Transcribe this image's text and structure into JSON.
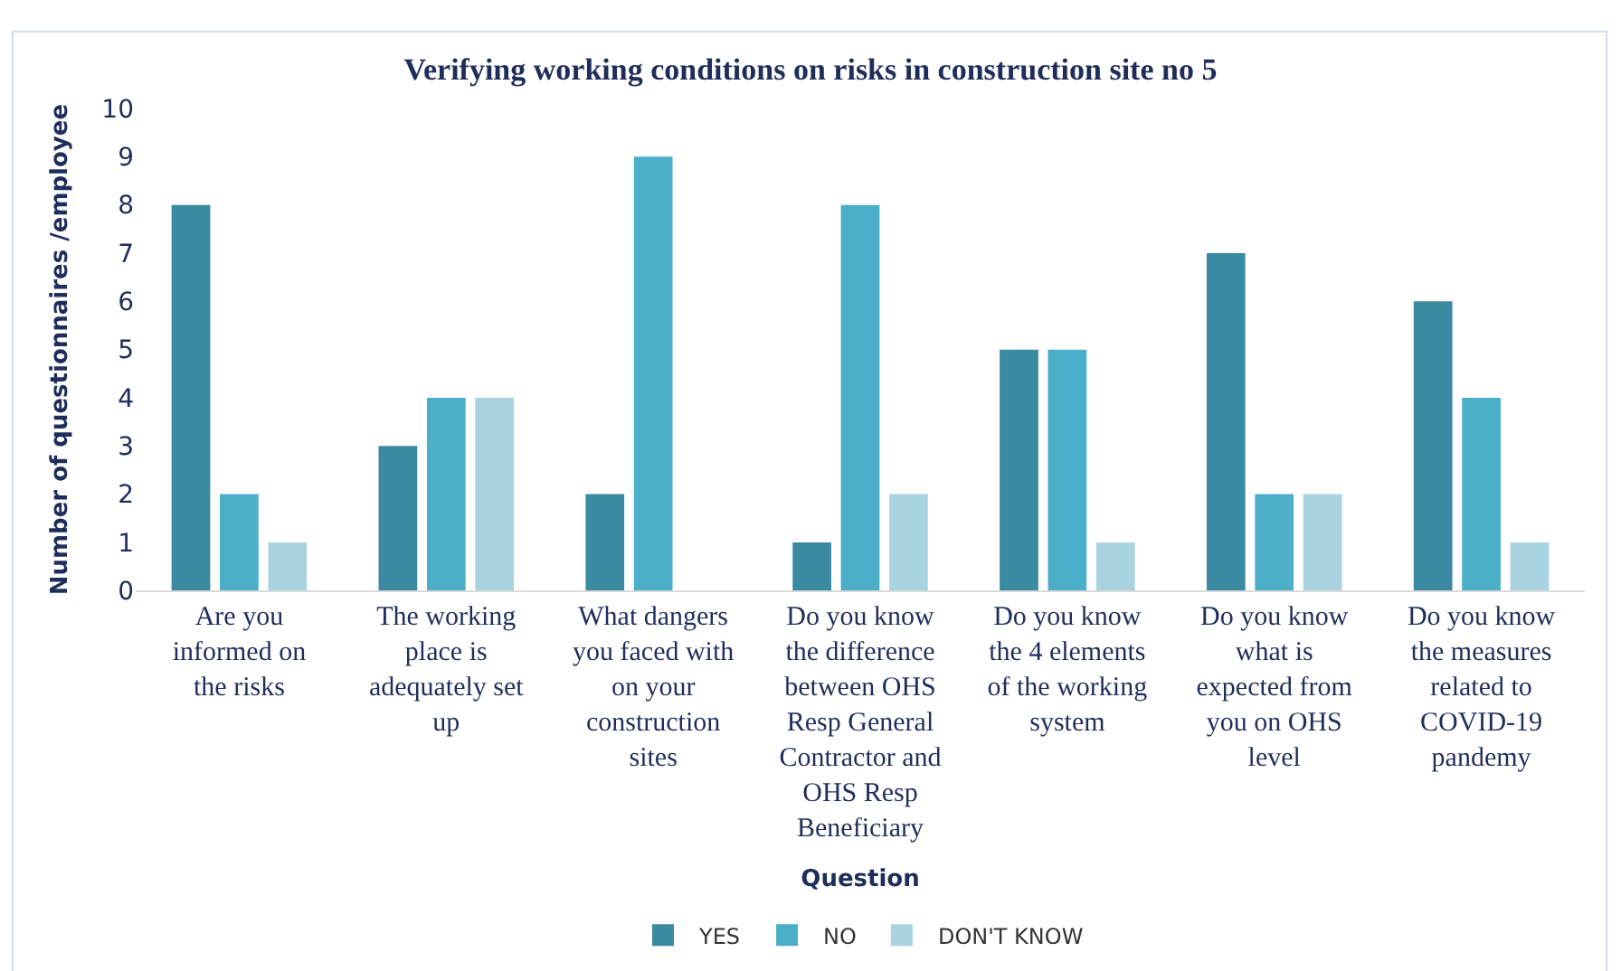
{
  "chart_data": {
    "type": "bar",
    "title": "Verifying working conditions on risks in construction site no 5",
    "xlabel": "Question",
    "ylabel": "Number of questionnaires /employee",
    "categories": [
      "Are you informed on the risks",
      "The working place is adequately set up",
      "What dangers you faced with on your construction sites",
      "Do you know the difference between OHS Resp General Contractor and OHS Resp Beneficiary",
      "Do you know the 4 elements of the working system",
      "Do you know what is expected from you on OHS level",
      "Do you know the measures related to COVID-19 pandemy"
    ],
    "series": [
      {
        "name": "YES",
        "color": "#3a8ba1",
        "values": [
          8,
          3,
          2,
          1,
          5,
          7,
          6
        ]
      },
      {
        "name": "NO",
        "color": "#4bafca",
        "values": [
          2,
          4,
          9,
          8,
          5,
          2,
          4
        ]
      },
      {
        "name": "DON'T KNOW",
        "color": "#a9d3e1",
        "values": [
          1,
          4,
          0,
          2,
          1,
          2,
          1
        ]
      }
    ],
    "ylim": [
      0,
      10
    ],
    "yticks": [
      0,
      1,
      2,
      3,
      4,
      5,
      6,
      7,
      8,
      9,
      10
    ],
    "legend": "bottom"
  }
}
